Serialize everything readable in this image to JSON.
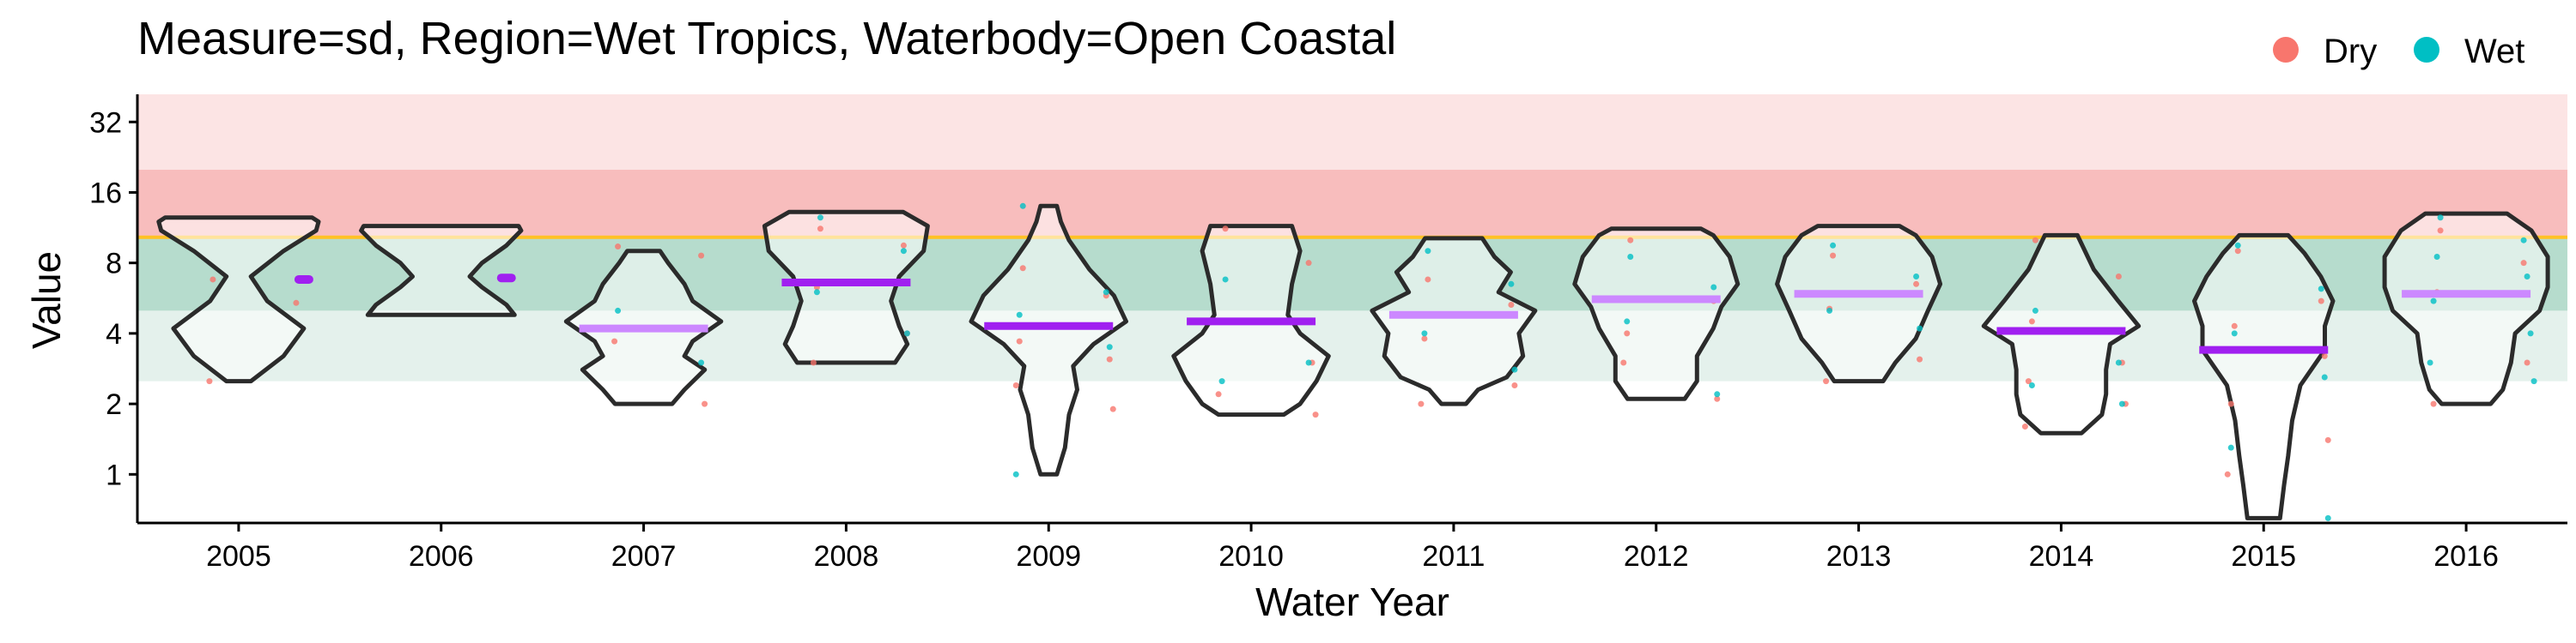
{
  "chart_data": {
    "type": "violin",
    "title": "Measure=sd, Region=Wet Tropics, Waterbody=Open Coastal",
    "xlabel": "Water Year",
    "ylabel": "Value",
    "y_scale": "log2",
    "ylim": [
      0.62,
      42
    ],
    "yticks": [
      1,
      2,
      4,
      8,
      16,
      32
    ],
    "ytick_labels": [
      "1",
      "2",
      "4",
      "8",
      "16",
      "32"
    ],
    "categories": [
      "2005",
      "2006",
      "2007",
      "2008",
      "2009",
      "2010",
      "2011",
      "2012",
      "2013",
      "2014",
      "2015",
      "2016"
    ],
    "legend": {
      "position": "top-right",
      "items": [
        {
          "label": "Dry",
          "color": "#F8766D"
        },
        {
          "label": "Wet",
          "color": "#00BFC4"
        }
      ]
    },
    "bands": [
      {
        "from": 20,
        "to": 42,
        "color": "#fce4e4"
      },
      {
        "from": 10.3,
        "to": 20,
        "color": "#f8bdbd"
      },
      {
        "from": 5.0,
        "to": 10.3,
        "color": "#b6dccd"
      },
      {
        "from": 2.5,
        "to": 5.0,
        "color": "#e4f1ec"
      }
    ],
    "threshold": {
      "value": 10.3,
      "color": "#FFC125"
    },
    "medians": [
      {
        "year": "2005",
        "value": 6.8,
        "color": "#a020f0",
        "short": true
      },
      {
        "year": "2006",
        "value": 6.9,
        "color": "#a020f0",
        "short": true
      },
      {
        "year": "2007",
        "value": 4.2,
        "color": "#cc88ff",
        "short": false
      },
      {
        "year": "2008",
        "value": 6.6,
        "color": "#a020f0",
        "short": false
      },
      {
        "year": "2009",
        "value": 4.3,
        "color": "#a020f0",
        "short": false
      },
      {
        "year": "2010",
        "value": 4.5,
        "color": "#a020f0",
        "short": false
      },
      {
        "year": "2011",
        "value": 4.8,
        "color": "#cc88ff",
        "short": false
      },
      {
        "year": "2012",
        "value": 5.6,
        "color": "#cc88ff",
        "short": false
      },
      {
        "year": "2013",
        "value": 5.9,
        "color": "#cc88ff",
        "short": false
      },
      {
        "year": "2014",
        "value": 4.1,
        "color": "#a020f0",
        "short": false
      },
      {
        "year": "2015",
        "value": 3.4,
        "color": "#a020f0",
        "short": false
      },
      {
        "year": "2016",
        "value": 5.9,
        "color": "#cc88ff",
        "short": false
      }
    ],
    "violins": [
      {
        "year": "2005",
        "profile": [
          [
            2.5,
            0.15
          ],
          [
            3.2,
            0.55
          ],
          [
            4.2,
            0.8
          ],
          [
            5.5,
            0.35
          ],
          [
            7,
            0.15
          ],
          [
            9,
            0.55
          ],
          [
            11,
            0.95
          ],
          [
            12,
            0.98
          ],
          [
            12.5,
            0.9
          ]
        ]
      },
      {
        "year": "2006",
        "profile": [
          [
            4.8,
            0.9
          ],
          [
            5.3,
            0.8
          ],
          [
            6.3,
            0.5
          ],
          [
            7.0,
            0.35
          ],
          [
            8.0,
            0.5
          ],
          [
            9.5,
            0.8
          ],
          [
            11.0,
            0.98
          ],
          [
            11.5,
            0.95
          ]
        ]
      },
      {
        "year": "2007",
        "profile": [
          [
            2.0,
            0.35
          ],
          [
            2.3,
            0.5
          ],
          [
            2.8,
            0.75
          ],
          [
            3.2,
            0.5
          ],
          [
            3.7,
            0.6
          ],
          [
            4.5,
            0.95
          ],
          [
            5.5,
            0.6
          ],
          [
            6.5,
            0.5
          ],
          [
            8.0,
            0.3
          ],
          [
            9.0,
            0.2
          ]
        ]
      },
      {
        "year": "2008",
        "profile": [
          [
            3.0,
            0.6
          ],
          [
            3.6,
            0.75
          ],
          [
            4.3,
            0.65
          ],
          [
            5.5,
            0.55
          ],
          [
            7,
            0.65
          ],
          [
            9,
            0.95
          ],
          [
            11.5,
            1.0
          ],
          [
            13.2,
            0.7
          ]
        ]
      },
      {
        "year": "2009",
        "profile": [
          [
            1.0,
            0.1
          ],
          [
            1.3,
            0.2
          ],
          [
            1.8,
            0.25
          ],
          [
            2.3,
            0.35
          ],
          [
            2.9,
            0.3
          ],
          [
            3.6,
            0.55
          ],
          [
            4.5,
            0.95
          ],
          [
            5.8,
            0.8
          ],
          [
            7.5,
            0.5
          ],
          [
            10,
            0.25
          ],
          [
            12,
            0.15
          ],
          [
            14,
            0.1
          ]
        ]
      },
      {
        "year": "2010",
        "profile": [
          [
            1.8,
            0.4
          ],
          [
            2.0,
            0.6
          ],
          [
            2.5,
            0.8
          ],
          [
            3.2,
            0.95
          ],
          [
            4.0,
            0.6
          ],
          [
            4.8,
            0.45
          ],
          [
            6.5,
            0.5
          ],
          [
            9,
            0.6
          ],
          [
            11.5,
            0.5
          ]
        ]
      },
      {
        "year": "2011",
        "profile": [
          [
            2.0,
            0.15
          ],
          [
            2.3,
            0.3
          ],
          [
            2.6,
            0.65
          ],
          [
            3.2,
            0.85
          ],
          [
            4.0,
            0.8
          ],
          [
            5.0,
            1.0
          ],
          [
            6.0,
            0.55
          ],
          [
            7.3,
            0.7
          ],
          [
            8.5,
            0.5
          ],
          [
            10.2,
            0.35
          ]
        ]
      },
      {
        "year": "2012",
        "profile": [
          [
            2.1,
            0.35
          ],
          [
            2.5,
            0.5
          ],
          [
            3.2,
            0.5
          ],
          [
            4.2,
            0.7
          ],
          [
            5.2,
            0.8
          ],
          [
            6.5,
            1.0
          ],
          [
            8.5,
            0.9
          ],
          [
            10.5,
            0.7
          ],
          [
            11.2,
            0.55
          ]
        ]
      },
      {
        "year": "2013",
        "profile": [
          [
            2.5,
            0.3
          ],
          [
            3.0,
            0.45
          ],
          [
            3.8,
            0.7
          ],
          [
            5.0,
            0.85
          ],
          [
            6.5,
            1.0
          ],
          [
            8.5,
            0.9
          ],
          [
            10.5,
            0.7
          ],
          [
            11.5,
            0.5
          ]
        ]
      },
      {
        "year": "2014",
        "profile": [
          [
            1.5,
            0.25
          ],
          [
            1.8,
            0.5
          ],
          [
            2.2,
            0.55
          ],
          [
            2.8,
            0.55
          ],
          [
            3.6,
            0.6
          ],
          [
            4.3,
            0.95
          ],
          [
            5.5,
            0.7
          ],
          [
            7.5,
            0.4
          ],
          [
            10.5,
            0.2
          ]
        ]
      },
      {
        "year": "2015",
        "profile": [
          [
            0.65,
            0.2
          ],
          [
            0.9,
            0.25
          ],
          [
            1.2,
            0.3
          ],
          [
            1.7,
            0.35
          ],
          [
            2.4,
            0.45
          ],
          [
            3.4,
            0.75
          ],
          [
            4.3,
            0.75
          ],
          [
            5.5,
            0.85
          ],
          [
            7.0,
            0.7
          ],
          [
            8.8,
            0.5
          ],
          [
            10.5,
            0.3
          ]
        ]
      },
      {
        "year": "2016",
        "profile": [
          [
            2.0,
            0.3
          ],
          [
            2.3,
            0.45
          ],
          [
            3.0,
            0.55
          ],
          [
            4.0,
            0.6
          ],
          [
            5.0,
            0.9
          ],
          [
            6.3,
            1.0
          ],
          [
            8.5,
            1.0
          ],
          [
            11,
            0.8
          ],
          [
            13,
            0.5
          ]
        ]
      }
    ],
    "points": [
      {
        "year": "2005",
        "season": "Dry",
        "values": [
          6.8,
          5.4,
          2.5
        ]
      },
      {
        "year": "2007",
        "season": "Dry",
        "values": [
          9.4,
          8.6,
          3.7,
          2.0
        ]
      },
      {
        "year": "2007",
        "season": "Wet",
        "values": [
          5.0,
          3.0
        ]
      },
      {
        "year": "2008",
        "season": "Dry",
        "values": [
          11.2,
          9.5,
          6.3,
          4.0,
          3.0
        ]
      },
      {
        "year": "2008",
        "season": "Wet",
        "values": [
          12.5,
          9.0,
          6.0,
          4.0
        ]
      },
      {
        "year": "2009",
        "season": "Dry",
        "values": [
          7.6,
          5.8,
          3.7,
          3.1,
          2.4,
          1.9
        ]
      },
      {
        "year": "2009",
        "season": "Wet",
        "values": [
          14.0,
          6.0,
          4.8,
          3.5,
          1.0
        ]
      },
      {
        "year": "2010",
        "season": "Dry",
        "values": [
          11.2,
          8.0,
          4.5,
          3.0,
          2.2,
          1.8
        ]
      },
      {
        "year": "2010",
        "season": "Wet",
        "values": [
          6.8,
          3.0,
          2.5
        ]
      },
      {
        "year": "2011",
        "season": "Dry",
        "values": [
          6.8,
          5.3,
          3.8,
          2.4,
          2.0
        ]
      },
      {
        "year": "2011",
        "season": "Wet",
        "values": [
          9.0,
          6.5,
          4.0,
          2.8
        ]
      },
      {
        "year": "2012",
        "season": "Dry",
        "values": [
          10.0,
          5.5,
          4.0,
          2.1,
          3.0
        ]
      },
      {
        "year": "2012",
        "season": "Wet",
        "values": [
          8.5,
          6.3,
          4.5,
          2.2
        ]
      },
      {
        "year": "2013",
        "season": "Dry",
        "values": [
          8.6,
          6.5,
          5.1,
          3.1,
          2.5
        ]
      },
      {
        "year": "2013",
        "season": "Wet",
        "values": [
          9.5,
          7.0,
          5.0,
          4.2
        ]
      },
      {
        "year": "2014",
        "season": "Dry",
        "values": [
          10.0,
          7.0,
          4.5,
          3.0,
          2.5,
          2.0,
          1.6
        ]
      },
      {
        "year": "2014",
        "season": "Wet",
        "values": [
          5.0,
          3.0,
          2.4,
          2.0
        ]
      },
      {
        "year": "2015",
        "season": "Dry",
        "values": [
          9.0,
          5.5,
          4.3,
          3.2,
          2.0,
          1.4,
          1.0
        ]
      },
      {
        "year": "2015",
        "season": "Wet",
        "values": [
          9.5,
          6.2,
          4.0,
          2.6,
          1.3,
          0.65
        ]
      },
      {
        "year": "2016",
        "season": "Dry",
        "values": [
          11.0,
          8.0,
          6.0,
          3.0,
          2.0
        ]
      },
      {
        "year": "2016",
        "season": "Wet",
        "values": [
          12.5,
          10.0,
          8.5,
          7.0,
          5.5,
          4.0,
          3.0,
          2.5
        ]
      }
    ]
  }
}
